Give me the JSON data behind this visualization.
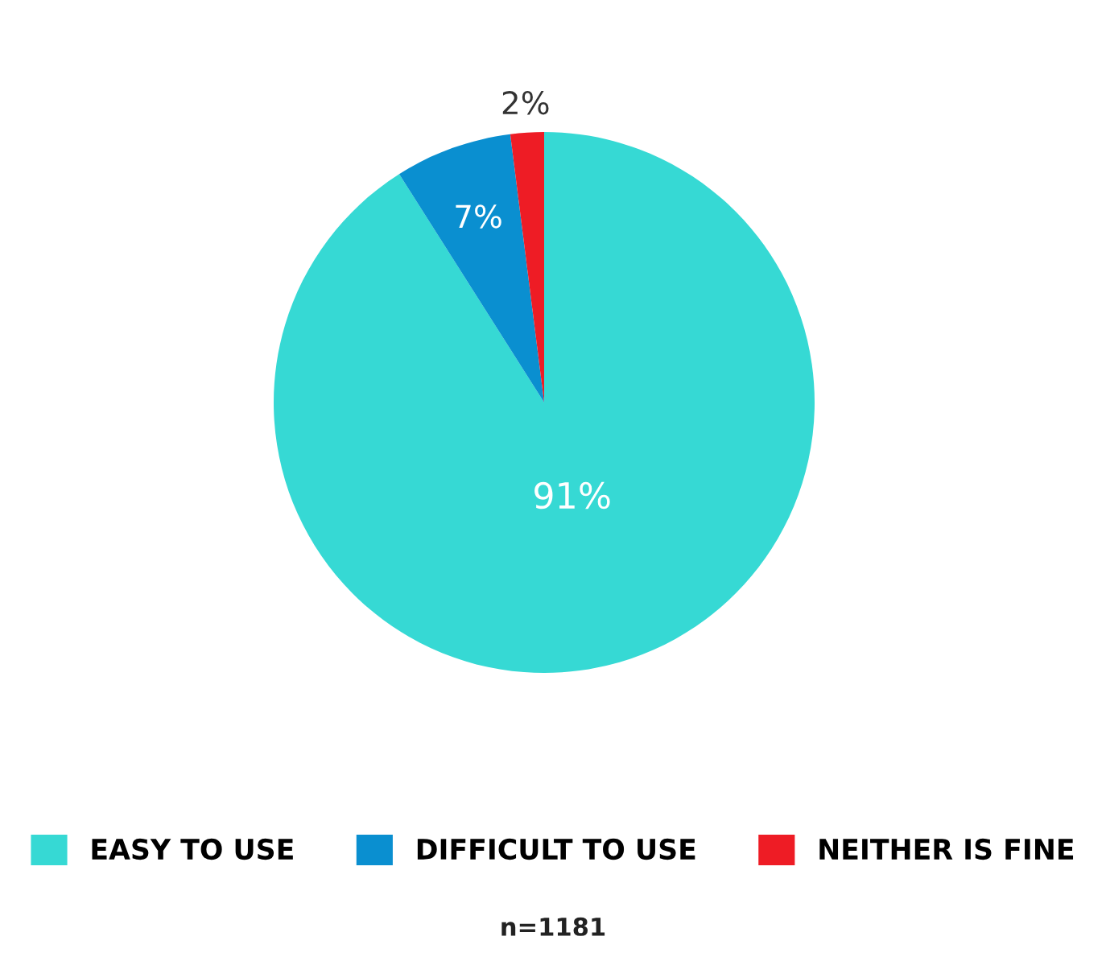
{
  "chart_data": {
    "type": "pie",
    "categories": [
      "EASY TO USE",
      "DIFFICULT TO USE",
      "NEITHER IS FINE"
    ],
    "values": [
      91,
      7,
      2
    ],
    "value_labels": [
      "91%",
      "7%",
      "2%"
    ],
    "colors": [
      "#36d9d4",
      "#0a8fd0",
      "#ee1c25"
    ],
    "legend": "bottom",
    "annotations": [
      "n=1181"
    ]
  }
}
